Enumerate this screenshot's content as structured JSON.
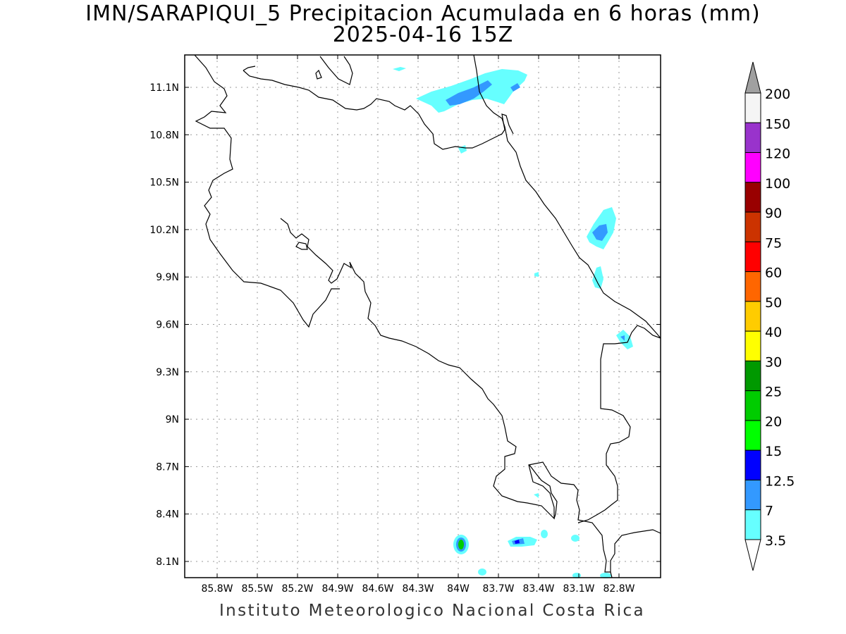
{
  "figure": {
    "title_line1": "IMN/SARAPIQUI_5 Precipitacion Acumulada en 6 horas (mm)",
    "title_line2": "2025-04-16 15Z",
    "credit": "Instituto Meteorologico Nacional Costa Rica"
  },
  "axes": {
    "x_ticks": [
      "85.8W",
      "85.5W",
      "85.2W",
      "84.9W",
      "84.6W",
      "84.3W",
      "84W",
      "83.7W",
      "83.4W",
      "83.1W",
      "82.8W"
    ],
    "y_ticks": [
      "11.1N",
      "10.8N",
      "10.5N",
      "10.2N",
      "9.9N",
      "9.6N",
      "9.3N",
      "9N",
      "8.7N",
      "8.4N",
      "8.1N"
    ],
    "grid": "dotted"
  },
  "colorbar": {
    "labels": [
      "200",
      "150",
      "120",
      "100",
      "90",
      "75",
      "60",
      "50",
      "40",
      "30",
      "25",
      "20",
      "15",
      "12.5",
      "7",
      "3.5"
    ],
    "colors": [
      "#f5f5f5",
      "#9933cc",
      "#ff00ff",
      "#990000",
      "#cc3300",
      "#ff0000",
      "#ff6600",
      "#ffcc00",
      "#ffff00",
      "#009900",
      "#00cc00",
      "#00ff00",
      "#0000ff",
      "#3399ff",
      "#66ffff"
    ],
    "over_color": "#a0a0a0",
    "under_color": "#ffffff"
  },
  "colors": {
    "coastline": "#000000",
    "grid": "#999999",
    "rain_3_5": "#66ffff",
    "rain_7": "#3399ff",
    "rain_12_5": "#0000ff",
    "rain_15": "#00ff00",
    "rain_20": "#00cc00"
  }
}
